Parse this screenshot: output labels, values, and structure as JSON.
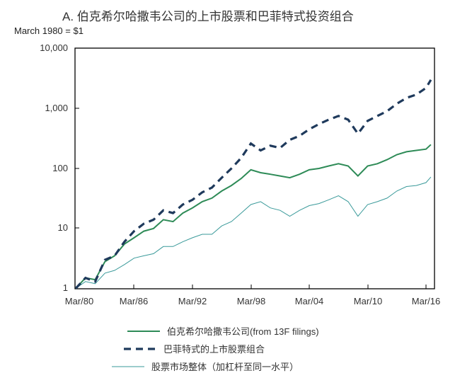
{
  "chart_data": {
    "type": "line",
    "title": "A. 伯克希尔哈撒韦公司的上市股票和巴菲特式投资组合",
    "subtitle": "March 1980 = $1",
    "xlabel": "",
    "ylabel": "",
    "yscale": "log",
    "ylim": [
      1,
      10000
    ],
    "yticks": [
      "1",
      "10",
      "100",
      "1,000",
      "10,000"
    ],
    "xticks": [
      "Mar/80",
      "Mar/86",
      "Mar/92",
      "Mar/98",
      "Mar/04",
      "Mar/10",
      "Mar/16"
    ],
    "x": [
      1980,
      1981,
      1982,
      1983,
      1984,
      1985,
      1986,
      1987,
      1988,
      1989,
      1990,
      1991,
      1992,
      1993,
      1994,
      1995,
      1996,
      1997,
      1998,
      1999,
      2000,
      2001,
      2002,
      2003,
      2004,
      2005,
      2006,
      2007,
      2008,
      2009,
      2010,
      2011,
      2012,
      2013,
      2014,
      2015,
      2016,
      2016.5
    ],
    "series": [
      {
        "name": "伯克希尔哈撒韦公司(from 13F filings)",
        "color": "#2e8b57",
        "style": "solid",
        "values": [
          1,
          1.5,
          1.4,
          2.8,
          3.5,
          5.5,
          7,
          9,
          10,
          14,
          13,
          18,
          22,
          28,
          32,
          42,
          52,
          68,
          95,
          85,
          80,
          75,
          70,
          80,
          95,
          100,
          110,
          120,
          110,
          75,
          110,
          120,
          140,
          170,
          190,
          200,
          210,
          250
        ]
      },
      {
        "name": "巴菲特式的上市股票组合",
        "color": "#1f3a5c",
        "style": "dashed",
        "values": [
          1,
          1.5,
          1.3,
          3,
          3.5,
          6,
          9,
          12,
          14,
          20,
          18,
          25,
          30,
          40,
          48,
          70,
          100,
          150,
          260,
          200,
          240,
          220,
          300,
          350,
          450,
          550,
          650,
          750,
          650,
          380,
          620,
          750,
          900,
          1200,
          1500,
          1700,
          2200,
          3000
        ]
      },
      {
        "name": "股票市场整体（加杠杆至同一水平）",
        "color": "#2f8f8f",
        "style": "thin",
        "values": [
          1,
          1.3,
          1.2,
          1.8,
          2.0,
          2.5,
          3.2,
          3.5,
          3.8,
          5,
          5,
          6,
          7,
          8,
          8,
          11,
          13,
          18,
          25,
          28,
          22,
          20,
          16,
          20,
          24,
          26,
          30,
          35,
          28,
          16,
          25,
          28,
          32,
          42,
          50,
          52,
          58,
          72
        ]
      }
    ],
    "legend_position": "bottom"
  },
  "labels": {
    "title": "A. 伯克希尔哈撒韦公司的上市股票和巴菲特式投资组合",
    "subtitle": "March 1980 = $1",
    "y": [
      "10,000",
      "1,000",
      "100",
      "10",
      "1"
    ],
    "x": [
      "Mar/80",
      "Mar/86",
      "Mar/92",
      "Mar/98",
      "Mar/04",
      "Mar/10",
      "Mar/16"
    ],
    "legend": [
      "伯克希尔哈撒韦公司(from 13F filings)",
      "巴菲特式的上市股票组合",
      "股票市场整体（加杠杆至同一水平）"
    ]
  }
}
